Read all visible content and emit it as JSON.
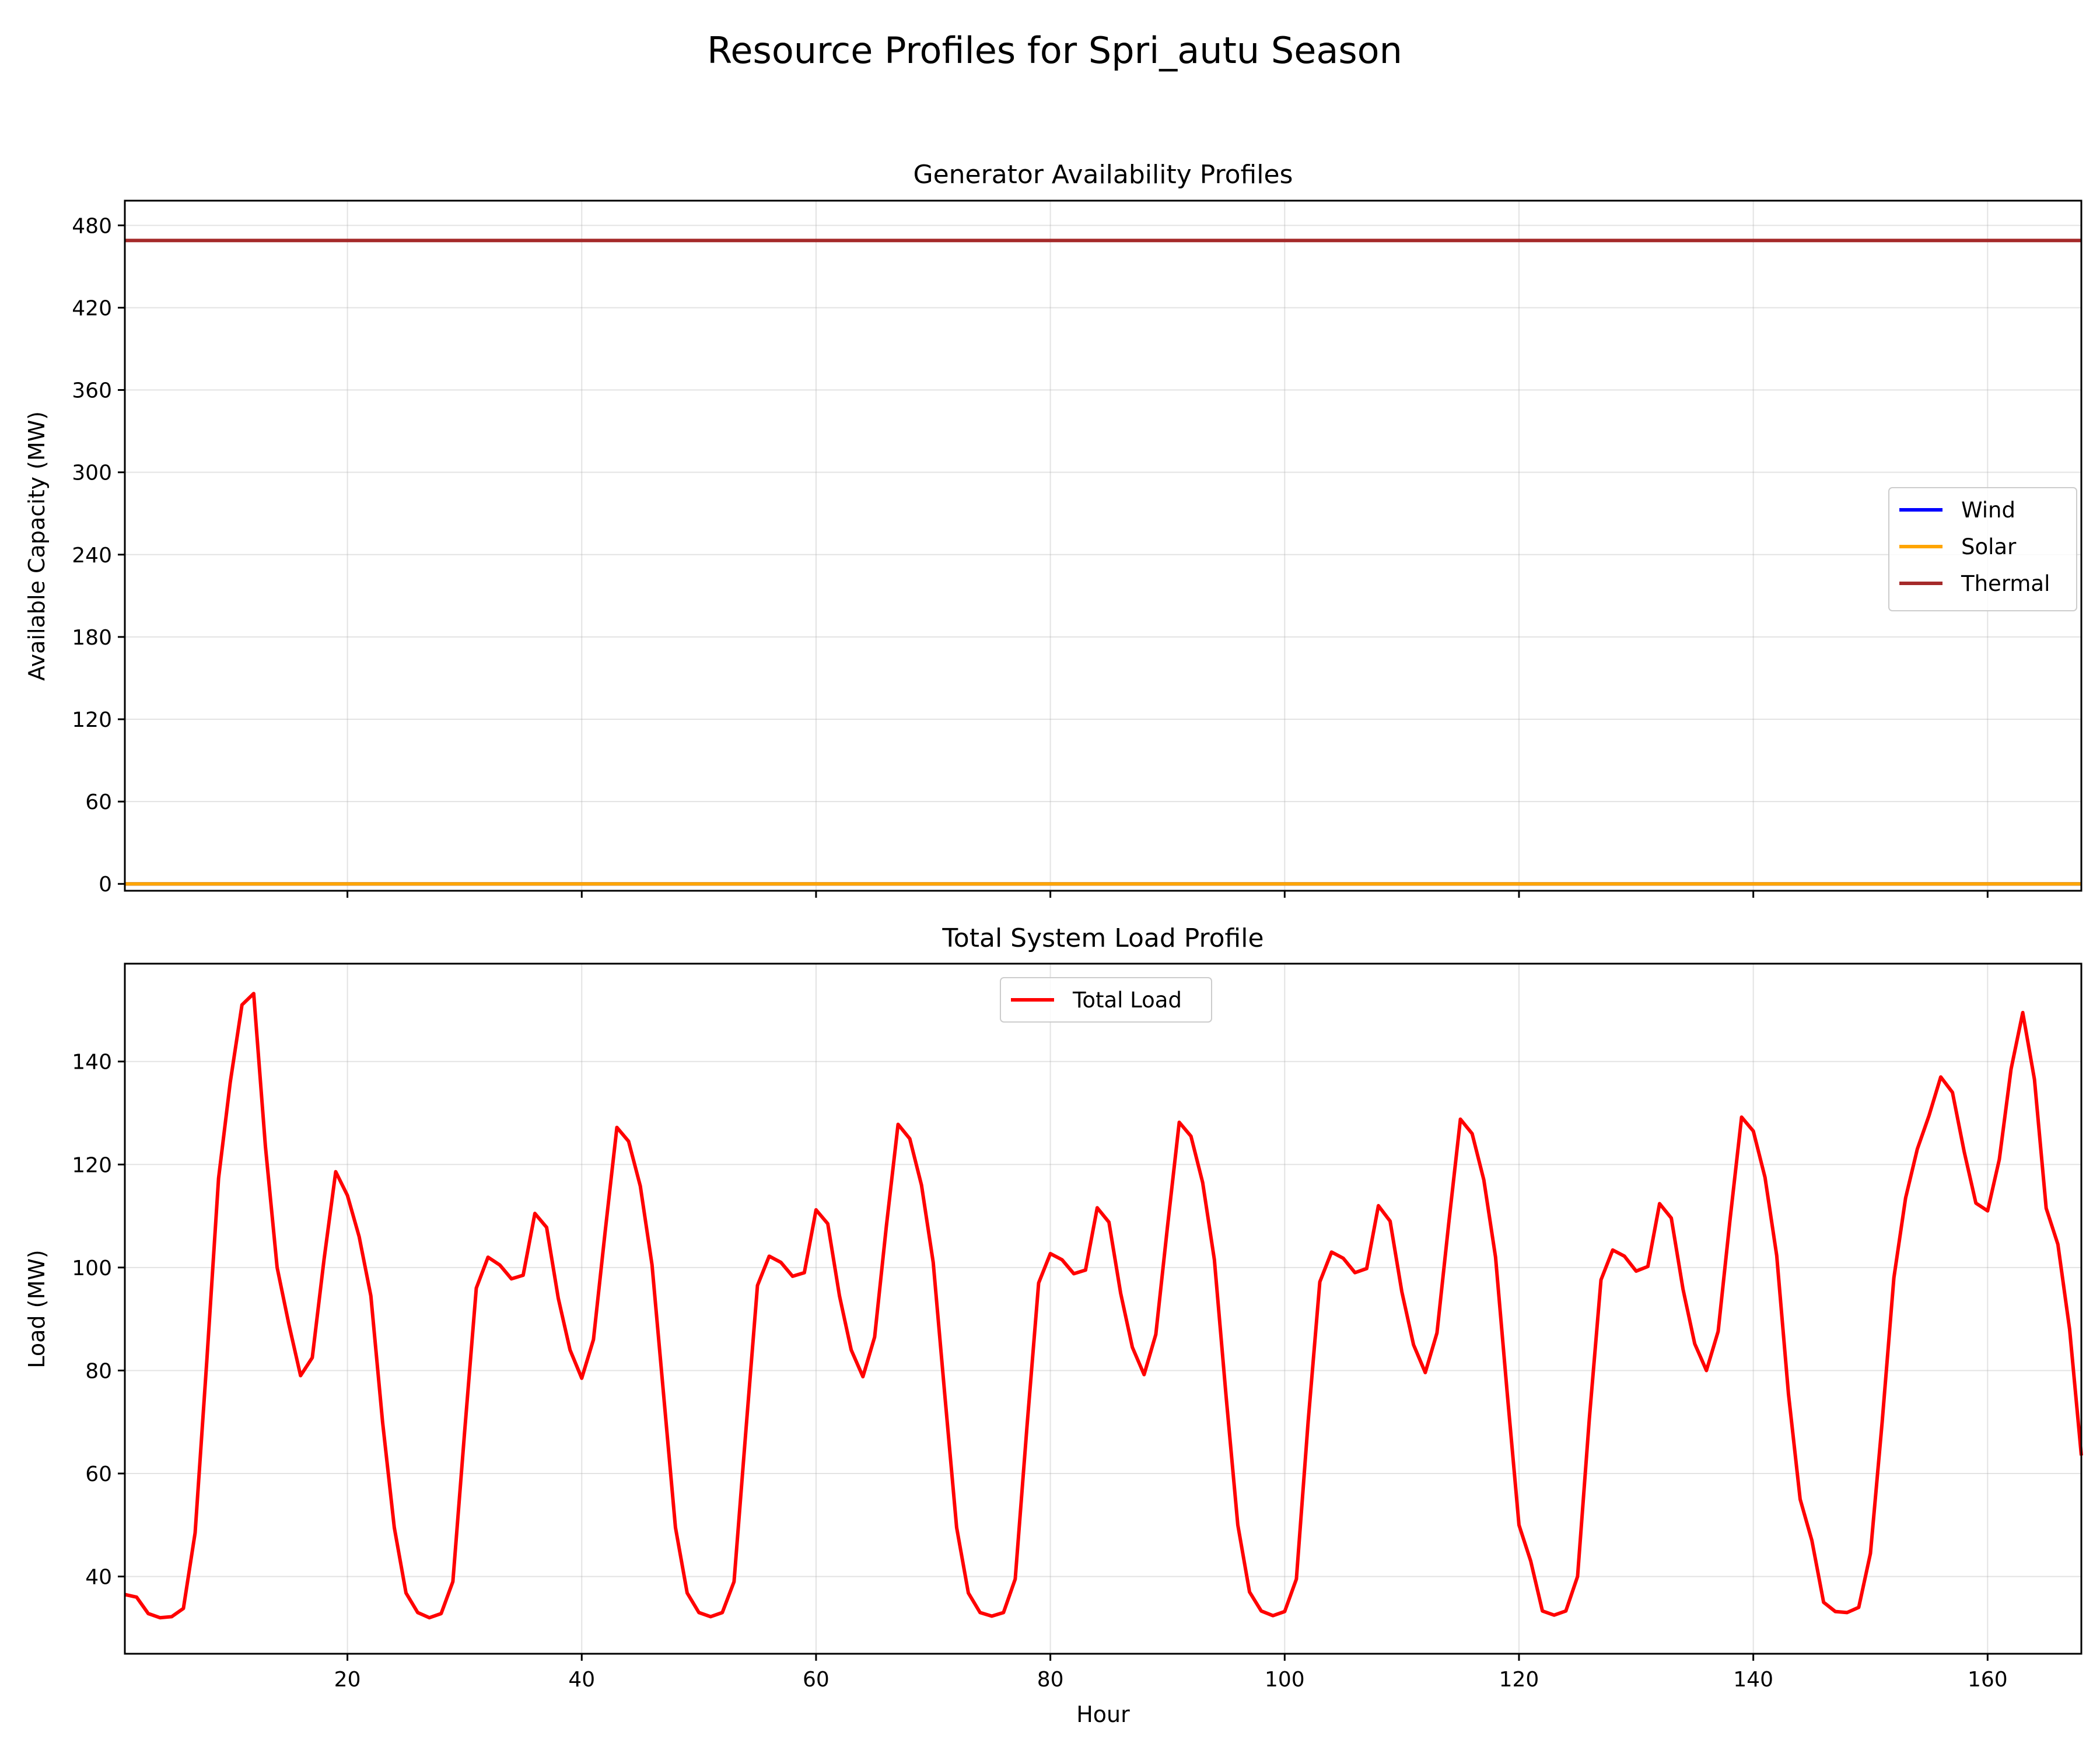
{
  "figure": {
    "title": "Resource Profiles for Spri_autu Season"
  },
  "chart_data": [
    {
      "type": "line",
      "title": "Generator Availability Profiles",
      "xlabel": "",
      "ylabel": "Available Capacity (MW)",
      "xlim": [
        1,
        168
      ],
      "ylim": [
        -5,
        498
      ],
      "xticks": [
        20,
        40,
        60,
        80,
        100,
        120,
        140,
        160
      ],
      "show_xtick_labels": false,
      "yticks": [
        0,
        60,
        120,
        180,
        240,
        300,
        360,
        420,
        480
      ],
      "grid": true,
      "legend_position": "center-right",
      "series": [
        {
          "name": "Wind",
          "color": "#0000ff",
          "constant": 0
        },
        {
          "name": "Solar",
          "color": "#ffa500",
          "constant": 0
        },
        {
          "name": "Thermal",
          "color": "#a52a2a",
          "constant": 469
        }
      ]
    },
    {
      "type": "line",
      "title": "Total System Load Profile",
      "xlabel": "Hour",
      "ylabel": "Load (MW)",
      "xlim": [
        1,
        168
      ],
      "ylim": [
        25,
        159
      ],
      "xticks": [
        20,
        40,
        60,
        80,
        100,
        120,
        140,
        160
      ],
      "show_xtick_labels": true,
      "yticks": [
        40,
        60,
        80,
        100,
        120,
        140
      ],
      "grid": true,
      "legend_position": "upper-center",
      "series": [
        {
          "name": "Total Load",
          "color": "#ff0000",
          "x_start": 1,
          "values": [
            36.5,
            36,
            32.8,
            32,
            32.2,
            33.8,
            48.5,
            82,
            117.3,
            136,
            151,
            153.2,
            123.5,
            100,
            89,
            79,
            82.5,
            101.5,
            118.6,
            114,
            106,
            94.5,
            70,
            49.5,
            36.8,
            33,
            32,
            32.8,
            39,
            68,
            96,
            102,
            100.5,
            97.8,
            98.5,
            110.5,
            107.8,
            94,
            84,
            78.5,
            86,
            107,
            127.2,
            124.5,
            115.8,
            100.5,
            75,
            49.5,
            36.8,
            33,
            32.2,
            33,
            39,
            68,
            96.5,
            102.2,
            101,
            98.3,
            99,
            111.2,
            108.5,
            94.5,
            84,
            78.8,
            86.5,
            108,
            127.8,
            125,
            116,
            101,
            75,
            49.5,
            36.8,
            33,
            32.3,
            33,
            39.5,
            69,
            97,
            102.7,
            101.5,
            98.8,
            99.5,
            111.6,
            108.8,
            95,
            84.5,
            79.2,
            87,
            108,
            128.2,
            125.5,
            116.5,
            101.5,
            75,
            50,
            37,
            33.3,
            32.4,
            33.2,
            39.5,
            70,
            97.2,
            103,
            101.8,
            99,
            99.8,
            112,
            109,
            95.3,
            85,
            79.6,
            87.3,
            108.5,
            128.8,
            126,
            117,
            102,
            75.5,
            50,
            43,
            33.3,
            32.5,
            33.3,
            40,
            70.5,
            97.6,
            103.4,
            102.2,
            99.3,
            100.2,
            112.4,
            109.6,
            95.8,
            85.2,
            80,
            87.6,
            109,
            129.2,
            126.5,
            117.5,
            102.3,
            75.5,
            55,
            47,
            35,
            33.2,
            33,
            34,
            44.5,
            70,
            98,
            113.5,
            123,
            129.5,
            137,
            134,
            122.5,
            112.5,
            111,
            121,
            138.5,
            149.5,
            136.5,
            111.5,
            104.5,
            88,
            63.5
          ]
        }
      ]
    }
  ]
}
